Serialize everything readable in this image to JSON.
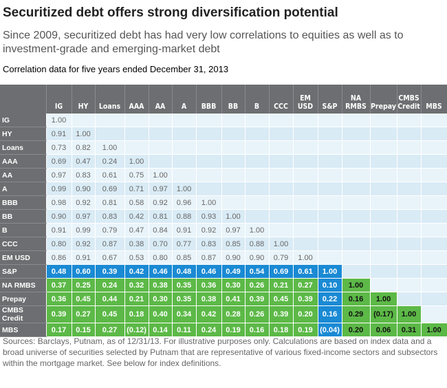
{
  "title": "Securitized debt offers strong diversification potential",
  "subtitle": "Since 2009, securitized debt has had very low correlations to equities as well as to investment-grade and emerging-market debt",
  "note": "Correlation data for five years ended December 31, 2013",
  "source": "Sources: Barclays, Putnam, as of 12/31/13. For illustrative purposes only. Calculations are based on index data and a broad universe of securities selected by Putnam that are representative of various fixed-income sectors and subsectors within the mortgage market. See below for index definitions.",
  "colors": {
    "header": "#6d6e71",
    "row_light": "#e9f4fa",
    "row_dark": "#d9ebf5",
    "sp_blue": "#1a8ad4",
    "securitized_green": "#5cb947"
  },
  "chart_data": {
    "type": "table",
    "columns": [
      "IG",
      "HY",
      "Loans",
      "AAA",
      "AA",
      "A",
      "BBB",
      "BB",
      "B",
      "CCC",
      "EM USD",
      "S&P",
      "NA RMBS",
      "Prepay",
      "CMBS Credit",
      "MBS"
    ],
    "rows": [
      {
        "label": "IG",
        "values": [
          "1.00"
        ]
      },
      {
        "label": "HY",
        "values": [
          "0.91",
          "1.00"
        ]
      },
      {
        "label": "Loans",
        "values": [
          "0.73",
          "0.82",
          "1.00"
        ]
      },
      {
        "label": "AAA",
        "values": [
          "0.69",
          "0.47",
          "0.24",
          "1.00"
        ]
      },
      {
        "label": "AA",
        "values": [
          "0.97",
          "0.83",
          "0.61",
          "0.75",
          "1.00"
        ]
      },
      {
        "label": "A",
        "values": [
          "0.99",
          "0.90",
          "0.69",
          "0.71",
          "0.97",
          "1.00"
        ]
      },
      {
        "label": "BBB",
        "values": [
          "0.98",
          "0.92",
          "0.81",
          "0.58",
          "0.92",
          "0.96",
          "1.00"
        ]
      },
      {
        "label": "BB",
        "values": [
          "0.90",
          "0.97",
          "0.83",
          "0.42",
          "0.81",
          "0.88",
          "0.93",
          "1.00"
        ]
      },
      {
        "label": "B",
        "values": [
          "0.91",
          "0.99",
          "0.79",
          "0.47",
          "0.84",
          "0.91",
          "0.92",
          "0.97",
          "1.00"
        ]
      },
      {
        "label": "CCC",
        "values": [
          "0.80",
          "0.92",
          "0.87",
          "0.38",
          "0.70",
          "0.77",
          "0.83",
          "0.85",
          "0.88",
          "1.00"
        ]
      },
      {
        "label": "EM USD",
        "values": [
          "0.86",
          "0.91",
          "0.67",
          "0.53",
          "0.80",
          "0.85",
          "0.87",
          "0.90",
          "0.90",
          "0.79",
          "1.00"
        ]
      },
      {
        "label": "S&P",
        "values": [
          "0.48",
          "0.60",
          "0.39",
          "0.42",
          "0.46",
          "0.48",
          "0.46",
          "0.49",
          "0.54",
          "0.69",
          "0.61",
          "1.00"
        ]
      },
      {
        "label": "NA RMBS",
        "values": [
          "0.37",
          "0.25",
          "0.24",
          "0.32",
          "0.38",
          "0.35",
          "0.36",
          "0.30",
          "0.26",
          "0.21",
          "0.27",
          "0.10",
          "1.00"
        ]
      },
      {
        "label": "Prepay",
        "values": [
          "0.36",
          "0.45",
          "0.44",
          "0.21",
          "0.30",
          "0.35",
          "0.38",
          "0.41",
          "0.39",
          "0.45",
          "0.39",
          "0.22",
          "0.16",
          "1.00"
        ]
      },
      {
        "label": "CMBS Credit",
        "values": [
          "0.39",
          "0.27",
          "0.45",
          "0.18",
          "0.40",
          "0.34",
          "0.42",
          "0.28",
          "0.26",
          "0.39",
          "0.20",
          "0.16",
          "0.29",
          "(0.17)",
          "1.00"
        ]
      },
      {
        "label": "MBS",
        "values": [
          "0.17",
          "0.15",
          "0.27",
          "(0.12)",
          "0.14",
          "0.11",
          "0.24",
          "0.19",
          "0.16",
          "0.18",
          "0.19",
          "(0.04)",
          "0.20",
          "0.06",
          "0.31",
          "1.00"
        ]
      }
    ]
  }
}
